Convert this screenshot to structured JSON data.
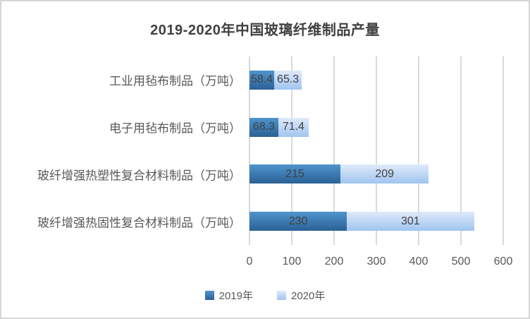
{
  "chart_data": {
    "type": "bar",
    "orientation": "horizontal-stacked",
    "title": "2019-2020年中国玻璃纤维制品产量",
    "categories": [
      "工业用毡布制品（万吨）",
      "电子用毡布制品（万吨）",
      "玻纤增强热塑性复合材料制品（万吨）",
      "玻纤增强热固性复合材料制品（万吨）"
    ],
    "series": [
      {
        "name": "2019年",
        "values": [
          58.4,
          68.3,
          215,
          230
        ]
      },
      {
        "name": "2020年",
        "values": [
          65.3,
          71.4,
          209,
          301
        ]
      }
    ],
    "x_ticks": [
      0,
      100,
      200,
      300,
      400,
      500,
      600
    ],
    "xlim": [
      0,
      600
    ],
    "xlabel": "",
    "ylabel": "",
    "grid": "vertical",
    "legend_position": "bottom",
    "colors": {
      "series_2019_gradient_top": "#4f94ce",
      "series_2019_gradient_bottom": "#2b6195",
      "series_2020_gradient_top": "#dfeafa",
      "series_2020_gradient_bottom": "#a0c4ef",
      "gridline": "#d9d9d9",
      "bar_label_text": "#404040",
      "axis_text": "#595959",
      "title_text": "#404040",
      "frame_border": "#d6d6d6"
    }
  }
}
